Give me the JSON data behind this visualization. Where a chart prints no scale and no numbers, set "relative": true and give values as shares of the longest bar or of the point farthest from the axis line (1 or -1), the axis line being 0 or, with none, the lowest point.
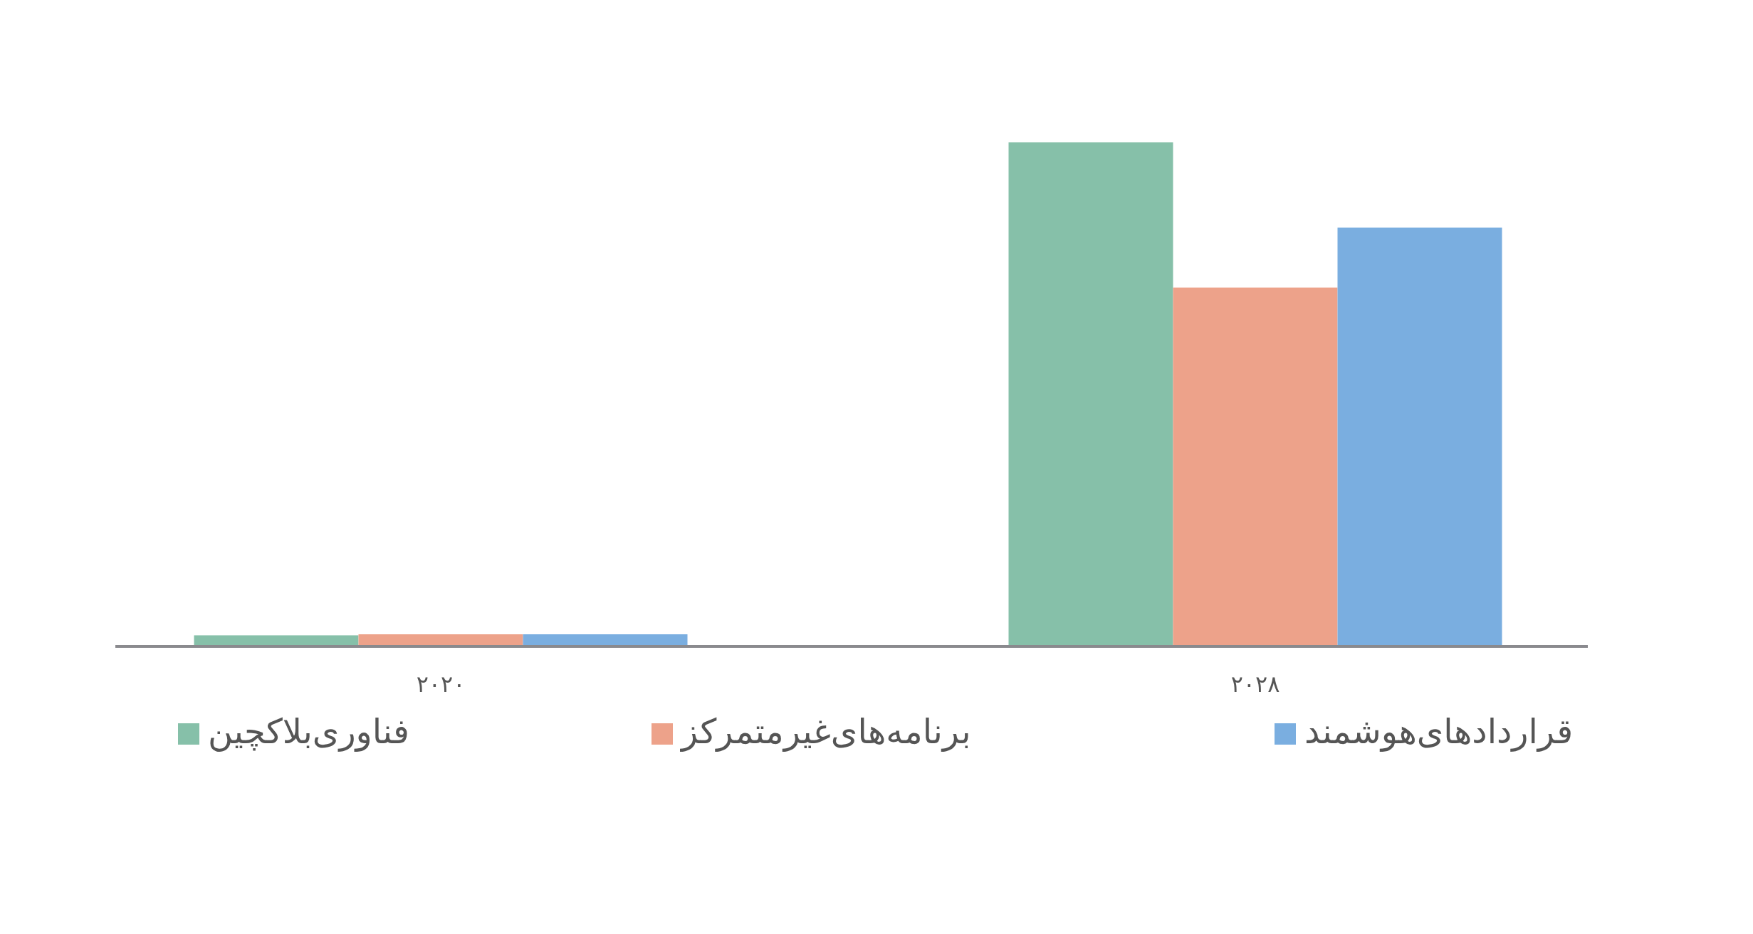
{
  "chart_data": {
    "type": "bar",
    "relative": true,
    "categories": [
      "۲۰۲۰",
      "۲۰۲۸"
    ],
    "legend": "bottom",
    "series": [
      {
        "name": "فناوری‌بلاکچین",
        "color": "#86c0a9",
        "values": [
          0.022,
          1
        ]
      },
      {
        "name": "برنامه‌های‌غیرمتمرکز",
        "color": "#eda28a",
        "values": [
          0.024,
          0.712
        ]
      },
      {
        "name": "قراردادهای‌هوشمند",
        "color": "#7aaee0",
        "values": [
          0.024,
          0.831
        ]
      }
    ]
  }
}
